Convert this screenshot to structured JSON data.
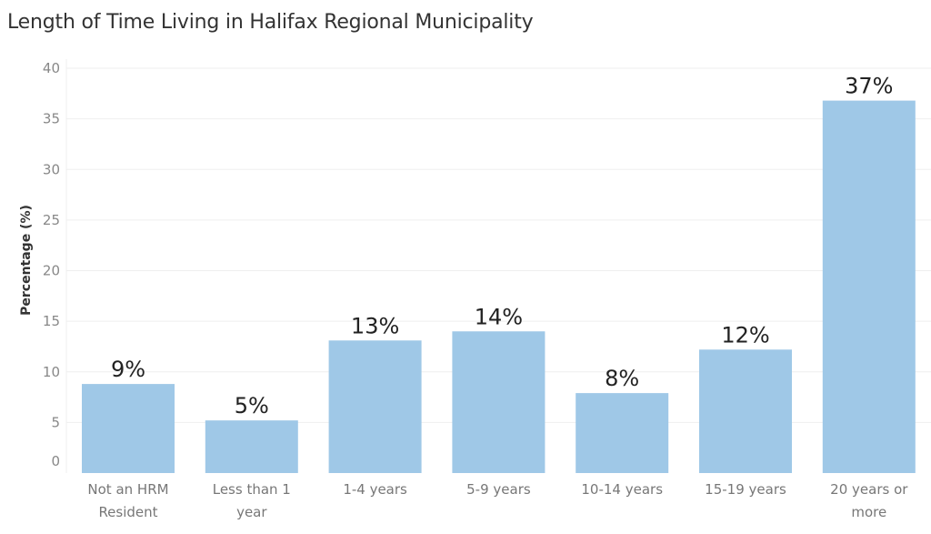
{
  "chart_data": {
    "type": "bar",
    "title": "Length of Time Living in Halifax Regional Municipality",
    "xlabel": "",
    "ylabel": "Percentage (%)",
    "ylim": [
      0,
      40
    ],
    "yticks": [
      0,
      5,
      10,
      15,
      20,
      25,
      30,
      35,
      40
    ],
    "grid": true,
    "categories": [
      [
        "Not an HRM",
        "Resident"
      ],
      [
        "Less than 1",
        "year"
      ],
      [
        "1-4 years"
      ],
      [
        "5-9 years"
      ],
      [
        "10-14 years"
      ],
      [
        "15-19 years"
      ],
      [
        "20 years or",
        "more"
      ]
    ],
    "values": [
      8.8,
      5.2,
      13.1,
      14.0,
      7.9,
      12.2,
      36.8
    ],
    "data_labels": [
      "9%",
      "5%",
      "13%",
      "14%",
      "8%",
      "12%",
      "37%"
    ],
    "colors": {
      "bar": "#9FC8E7",
      "grid": "#EFEFEF"
    }
  }
}
